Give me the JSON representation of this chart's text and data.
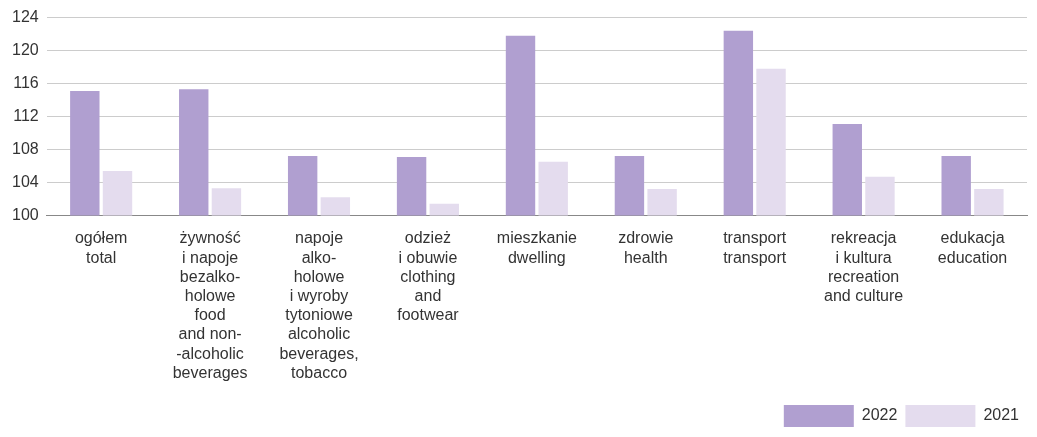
{
  "chart_data": {
    "type": "bar",
    "categories": [
      "ogółem\ntotal",
      "żywność\ni napoje\nbezalko-\nholowe\nfood\nand non-\n-alcoholic\nbeverages",
      "napoje\nalko-\nholowe\ni wyroby\ntytoniowe\nalcoholic\nbeverages,\ntobacco",
      "odzież\ni obuwie\nclothing\nand\nfootwear",
      "mieszkanie\ndwelling",
      "zdrowie\nhealth",
      "transport\ntransport",
      "rekreacja\ni kultura\nrecreation\nand culture",
      "edukacja\neducation"
    ],
    "series": [
      {
        "name": "2022",
        "color": "#b09fd0",
        "values": [
          115.1,
          115.3,
          107.2,
          107.1,
          121.8,
          107.2,
          122.4,
          111.1,
          107.2
        ]
      },
      {
        "name": "2021",
        "color": "#e4dcee",
        "values": [
          105.4,
          103.3,
          102.2,
          101.4,
          106.5,
          103.2,
          117.8,
          104.7,
          103.2
        ]
      }
    ],
    "ylim": [
      100,
      124
    ],
    "yticks": [
      100,
      104,
      108,
      112,
      116,
      120,
      124
    ],
    "grid": "y",
    "legend": "bottom"
  }
}
